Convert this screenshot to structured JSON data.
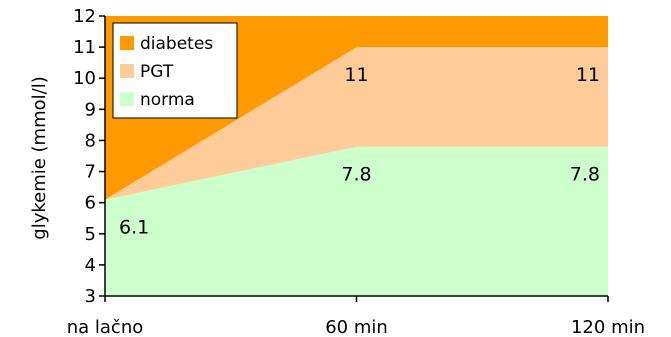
{
  "chart_data": {
    "type": "area",
    "stacked": true,
    "title": "",
    "xlabel": "",
    "ylabel": "glykemie (mmol/l)",
    "ylim": [
      3,
      12
    ],
    "yticks": [
      3,
      4,
      5,
      6,
      7,
      8,
      9,
      10,
      11,
      12
    ],
    "categories": [
      "na lačno",
      "60 min",
      "120 min"
    ],
    "series": [
      {
        "name": "norma",
        "upper": [
          6.1,
          7.8,
          7.8
        ],
        "color": "#ccffcc"
      },
      {
        "name": "PGT",
        "upper": [
          6.1,
          11,
          11
        ],
        "color": "#ffcc99"
      },
      {
        "name": "diabetes",
        "upper": [
          12,
          12,
          12
        ],
        "color": "#ff9900"
      }
    ],
    "data_labels": [
      {
        "category": "na lačno",
        "value": 6.1,
        "text": "6.1"
      },
      {
        "category": "60 min",
        "value": 7.8,
        "text": "7.8"
      },
      {
        "category": "120 min",
        "value": 7.8,
        "text": "7.8"
      },
      {
        "category": "60 min",
        "value": 11,
        "text": "11"
      },
      {
        "category": "120 min",
        "value": 11,
        "text": "11"
      }
    ],
    "legend": {
      "position": "top-left",
      "entries": [
        "diabetes",
        "PGT",
        "norma"
      ]
    },
    "grid": false
  }
}
